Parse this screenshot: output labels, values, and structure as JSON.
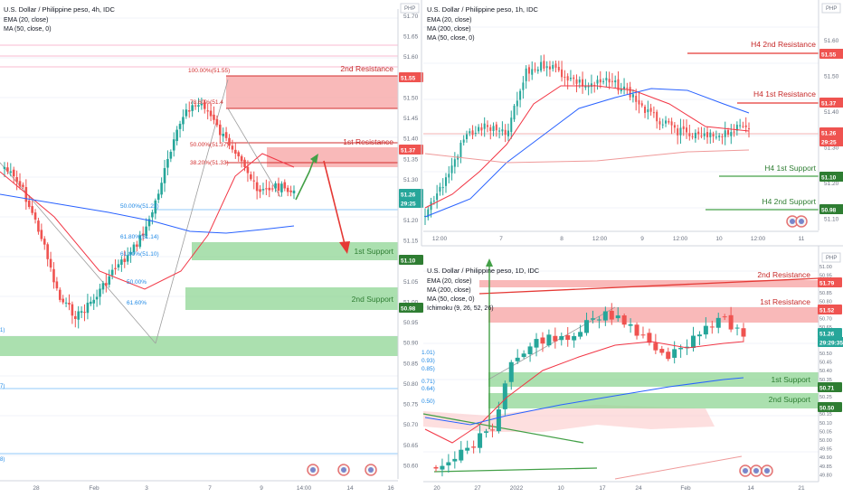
{
  "colors": {
    "up": "#26a69a",
    "down": "#ef5350",
    "upDark": "#1f8a4a",
    "ema": "#f23645",
    "ma_blue": "#2962ff",
    "resZone": "#f7a1a1",
    "supZone": "#8fd694",
    "grid": "#f0f3fa",
    "text": "#131722",
    "axisText": "#6b7280",
    "redLine": "#e53935",
    "greenLine": "#43a047",
    "fib": "#d32f2f"
  },
  "panels": [
    {
      "id": "left",
      "title": "U.S. Dollar / Philippine peso, 4h, IDC",
      "indicators": [
        "EMA (20, close)",
        "MA (50, close, 0)"
      ],
      "currency": "PHP",
      "yticks": [
        "51.70",
        "51.65",
        "51.60",
        "51.55",
        "51.50",
        "51.45",
        "51.40",
        "51.35",
        "51.30",
        "51.25",
        "51.20",
        "51.15",
        "51.10",
        "51.05",
        "51.00",
        "50.95",
        "50.90",
        "50.85",
        "50.80",
        "50.75",
        "50.70",
        "50.65",
        "50.60"
      ],
      "xticks": [
        "28",
        "Feb",
        "3",
        "7",
        "9",
        "14:00",
        "14",
        "16"
      ],
      "zone_labels": [
        "2nd Resistance",
        "1st Resistance",
        "1st Support",
        "2nd Support"
      ],
      "fib_labels": [
        "100.00%(51.55)",
        "78.60%(51.4",
        "50.00%(51.37)",
        "38.20%(51.33)",
        "50.00%(51.22)",
        "61.80%(51.14)",
        "61.80%(51.10)",
        "50.00%",
        "61.60%"
      ],
      "edge_labels": [
        "1)",
        "7)",
        "8)"
      ],
      "price_tags": [
        "51.55",
        "51.37",
        "51.26",
        "29:25",
        "51.10",
        "50.98"
      ]
    },
    {
      "id": "top-right",
      "title": "U.S. Dollar / Philippine peso, 1h, IDC",
      "indicators": [
        "EMA (20, close)",
        "MA (200, close)",
        "MA (50, close, 0)"
      ],
      "currency": "PHP",
      "yticks": [
        "51.60",
        "51.50",
        "51.40",
        "51.30",
        "51.20",
        "51.10"
      ],
      "xticks": [
        "12:00",
        "7",
        "8",
        "12:00",
        "9",
        "12:00",
        "10",
        "12:00",
        "11"
      ],
      "line_labels": [
        "H4 2nd Resistance",
        "H4 1st Resistance",
        "H4 1st Support",
        "H4 2nd Support"
      ],
      "price_tags": [
        "51.55",
        "51.37",
        "51.26",
        "29:25",
        "51.10",
        "50.98"
      ]
    },
    {
      "id": "bottom-right",
      "title": "U.S. Dollar / Philippine peso, 1D, IDC",
      "indicators": [
        "EMA (20, close)",
        "MA (200, close)",
        "MA (50, close, 0)",
        "Ichimoku (9, 26, 52, 26)"
      ],
      "currency": "PHP",
      "yticks": [
        "51.00",
        "50.95",
        "50.90",
        "50.85",
        "50.80",
        "50.75",
        "50.70",
        "50.65",
        "50.60",
        "50.55",
        "50.50",
        "50.45",
        "50.40",
        "50.35",
        "50.30",
        "50.25",
        "50.20",
        "50.15",
        "50.10",
        "50.05",
        "50.00",
        "49.95",
        "49.90",
        "49.85",
        "49.80"
      ],
      "xticks": [
        "20",
        "27",
        "2022",
        "10",
        "17",
        "24",
        "Feb",
        "14",
        "21"
      ],
      "zone_labels": [
        "2nd Resistance",
        "1st Resistance",
        "1st Support",
        "2nd Support"
      ],
      "fib_labels": [
        "1.01)",
        "0.93)",
        "0.85)",
        "0.71)",
        "0.64)",
        "0.50)"
      ],
      "price_tags": [
        "51.79",
        "51.52",
        "51.26",
        "29:29:35",
        "50.71",
        "50.50"
      ]
    }
  ]
}
